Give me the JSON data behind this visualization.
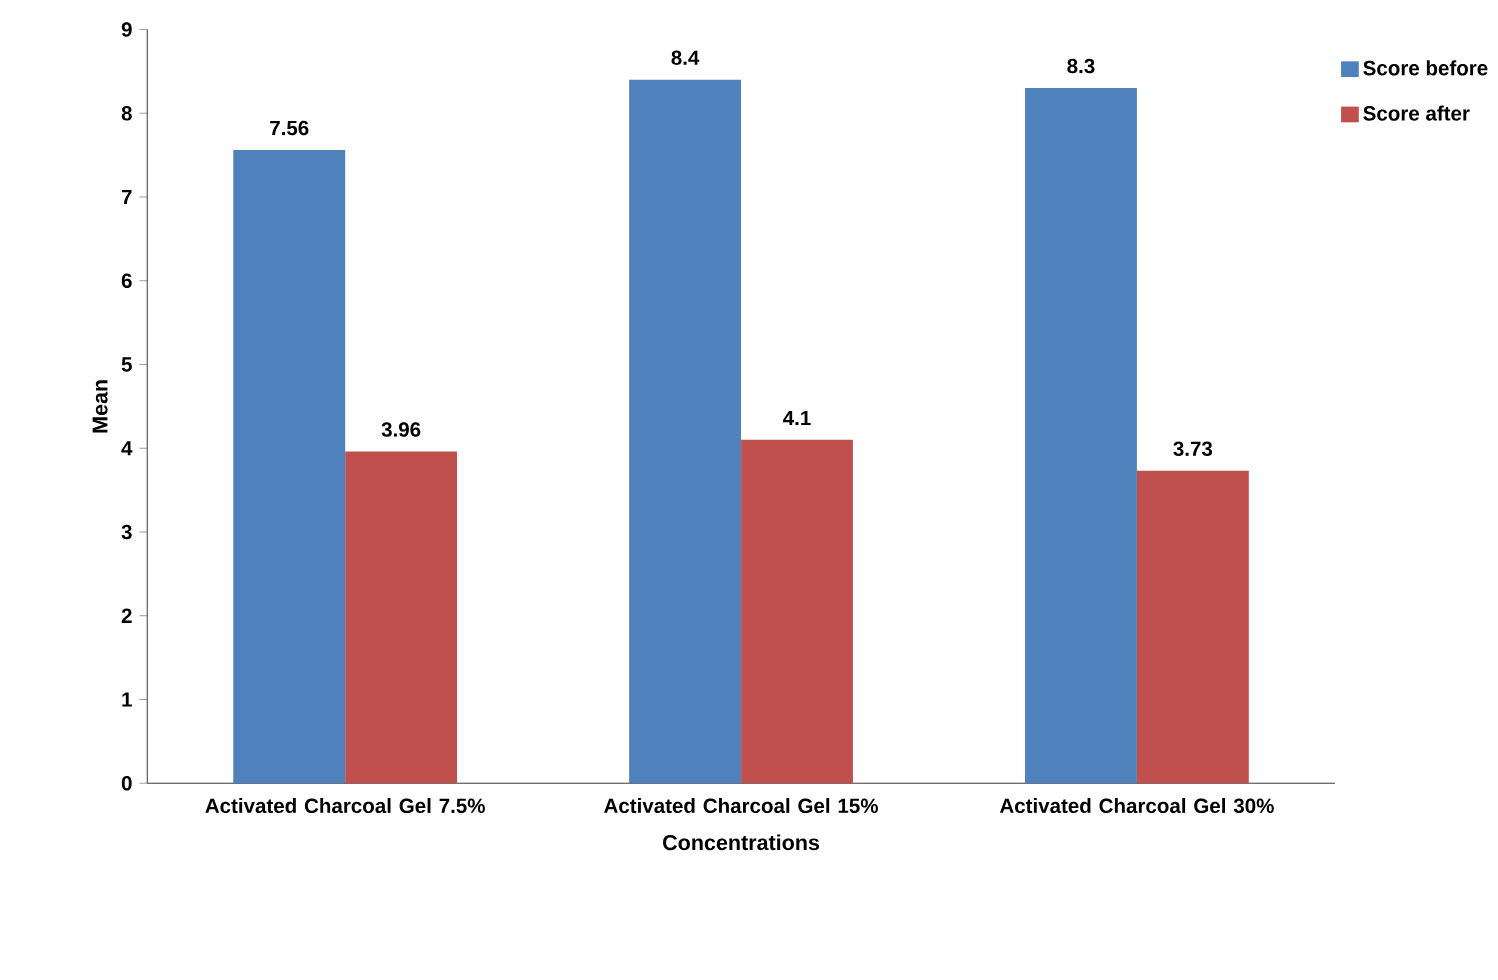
{
  "chart_data": {
    "type": "bar",
    "xlabel": "Concentrations",
    "ylabel": "Mean",
    "categories": [
      "Activated Charcoal Gel 7.5%",
      "Activated Charcoal Gel 15%",
      "Activated Charcoal Gel 30%"
    ],
    "series": [
      {
        "name": "Score before",
        "color": "#4f81bd",
        "values": [
          7.56,
          8.4,
          8.3
        ]
      },
      {
        "name": "Score after",
        "color": "#c0504d",
        "values": [
          3.96,
          4.1,
          3.73
        ]
      }
    ],
    "ylim": [
      0,
      9
    ],
    "yticks": [
      0,
      1,
      2,
      3,
      4,
      5,
      6,
      7,
      8,
      9
    ],
    "grid": false,
    "legend": "right",
    "data_labels": true
  }
}
